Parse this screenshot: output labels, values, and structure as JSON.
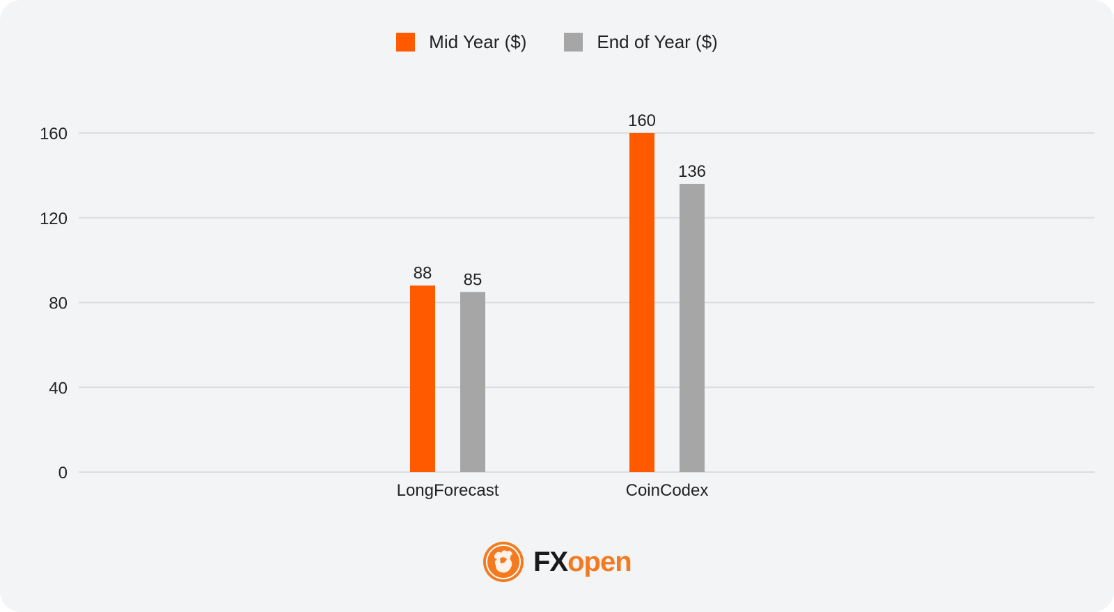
{
  "chart_data": {
    "type": "bar",
    "categories": [
      "LongForecast",
      "CoinCodex"
    ],
    "series": [
      {
        "name": "Mid Year ($)",
        "values": [
          88,
          160
        ],
        "color": "#ff5a00"
      },
      {
        "name": "End of Year ($)",
        "values": [
          85,
          136
        ],
        "color": "#a6a6a6"
      }
    ],
    "yticks": [
      0,
      40,
      80,
      120,
      160
    ],
    "ylim": [
      0,
      160
    ],
    "grid": true,
    "legend_position": "top-center",
    "data_labels": true
  },
  "brand": {
    "logo_text_dark": "FX",
    "logo_text_accent": "open",
    "accent_color": "#f47a20",
    "icon": "bull-emblem-icon"
  },
  "colors": {
    "background": "#f3f4f6",
    "gridline": "#dcdde0",
    "text": "#222222"
  }
}
